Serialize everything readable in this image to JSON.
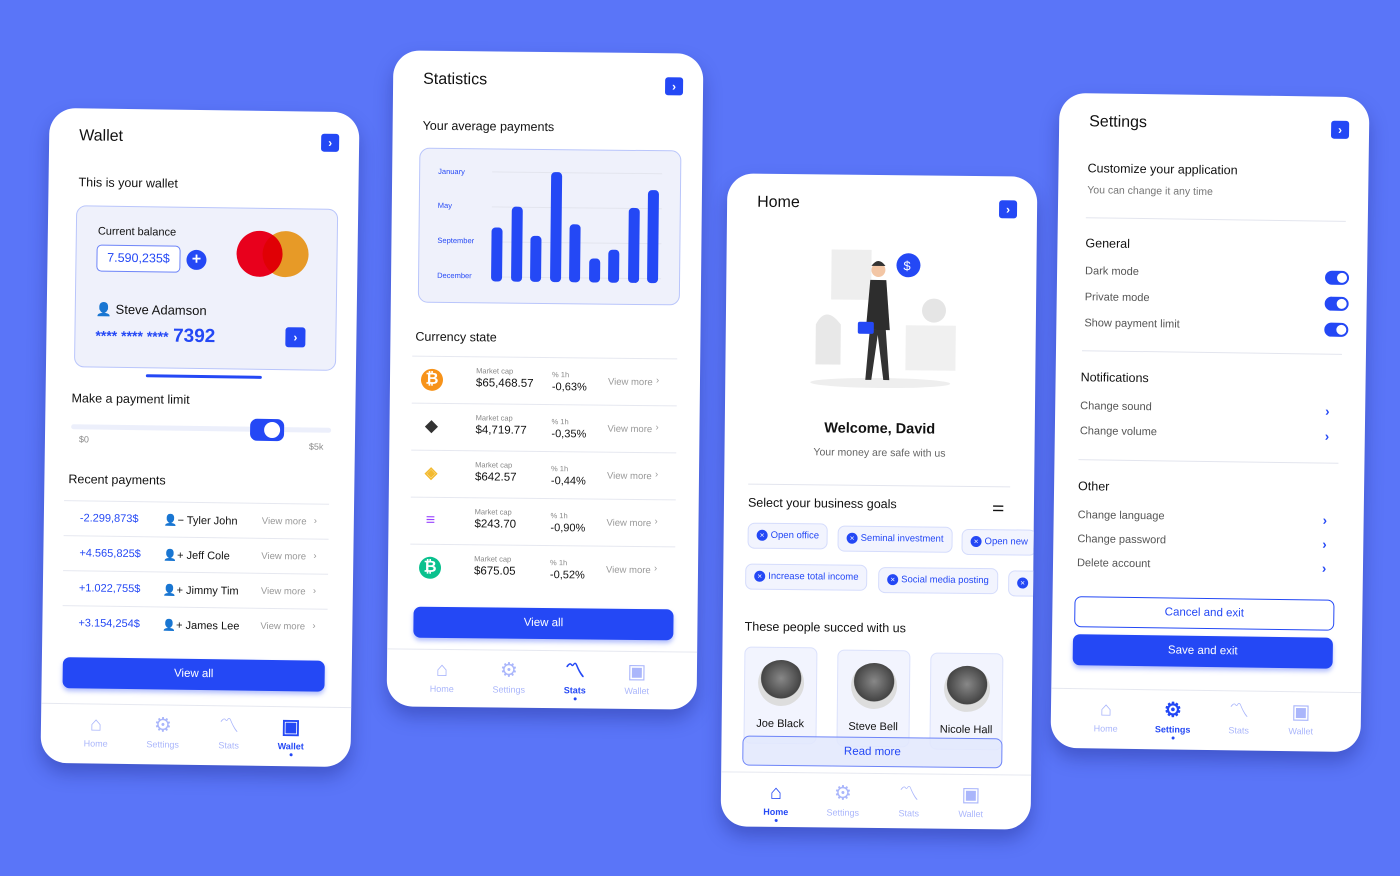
{
  "colors": {
    "background": "#5a75f8",
    "accent": "#2448f5"
  },
  "nav": {
    "home": "Home",
    "settings": "Settings",
    "stats": "Stats",
    "wallet": "Wallet"
  },
  "wallet": {
    "title": "Wallet",
    "subtitle": "This is your wallet",
    "current_balance_label": "Current balance",
    "balance": "7.590,235$",
    "card_holder": "Steve Adamson",
    "card_number_masked": "**** **** ****",
    "card_last4": "7392",
    "payment_limit_label": "Make a payment limit",
    "slider_min": "$0",
    "slider_max": "$5k",
    "slider_value_fraction": 0.78,
    "recent_payments_label": "Recent payments",
    "payments": [
      {
        "amount": "-2.299,873$",
        "name": "Tyler John",
        "icon": "user-minus-icon",
        "link": "View more"
      },
      {
        "amount": "+4.565,825$",
        "name": "Jeff Cole",
        "icon": "user-plus-icon",
        "link": "View more"
      },
      {
        "amount": "+1.022,755$",
        "name": "Jimmy Tim",
        "icon": "user-plus-icon",
        "link": "View more"
      },
      {
        "amount": "+3.154,254$",
        "name": "James Lee",
        "icon": "user-plus-icon",
        "link": "View more"
      }
    ],
    "view_all": "View all"
  },
  "stats": {
    "title": "Statistics",
    "subtitle": "Your average payments",
    "chart_labels": [
      "January",
      "May",
      "September",
      "December"
    ],
    "chart_bars": [
      0.49,
      0.68,
      0.42,
      1.0,
      0.53,
      0.22,
      0.3,
      0.68,
      0.85
    ],
    "currency_label": "Currency state",
    "market_cap_label": "Market cap",
    "change_label": "% 1h",
    "coins": [
      {
        "icon": "bitcoin-icon",
        "cap": "$65,468.57",
        "change": "-0,63%",
        "link": "View more"
      },
      {
        "icon": "ethereum-icon",
        "cap": "$4,719.77",
        "change": "-0,35%",
        "link": "View more"
      },
      {
        "icon": "binance-icon",
        "cap": "$642.57",
        "change": "-0,44%",
        "link": "View more"
      },
      {
        "icon": "solana-icon",
        "cap": "$243.70",
        "change": "-0,90%",
        "link": "View more"
      },
      {
        "icon": "bitcoin-cash-icon",
        "cap": "$675.05",
        "change": "-0,52%",
        "link": "View more"
      }
    ],
    "view_all": "View all"
  },
  "home": {
    "title": "Home",
    "welcome": "Welcome, David",
    "welcome_sub": "Your money are safe with us",
    "goals_label": "Select your business goals",
    "goals": [
      "Open office",
      "Seminal investment",
      "Open new",
      "Increase total income",
      "Social media posting"
    ],
    "people_label": "These people succed with us",
    "people": [
      "Joe Black",
      "Steve Bell",
      "Nicole Hall"
    ],
    "read_more": "Read more"
  },
  "settings": {
    "title": "Settings",
    "customize": "Customize your application",
    "customize_sub": "You can change it any time",
    "general_label": "General",
    "general": [
      {
        "label": "Dark mode",
        "on": true
      },
      {
        "label": "Private mode",
        "on": true
      },
      {
        "label": "Show payment limit",
        "on": true
      }
    ],
    "notifications_label": "Notifications",
    "notifications": [
      "Change sound",
      "Change volume"
    ],
    "other_label": "Other",
    "other": [
      "Change language",
      "Change password",
      "Delete account"
    ],
    "cancel": "Cancel and exit",
    "save": "Save and exit"
  }
}
